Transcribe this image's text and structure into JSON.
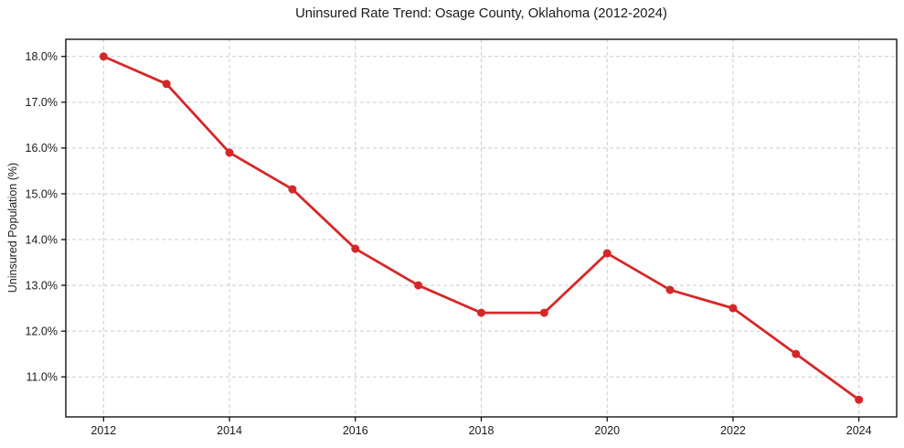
{
  "chart_data": {
    "type": "line",
    "title": "Uninsured Rate Trend: Osage County, Oklahoma (2012-2024)",
    "xlabel": "",
    "ylabel": "Uninsured Population (%)",
    "x": [
      2012,
      2013,
      2014,
      2015,
      2016,
      2017,
      2018,
      2019,
      2020,
      2021,
      2022,
      2023,
      2024
    ],
    "values": [
      18.0,
      17.4,
      15.9,
      15.1,
      13.8,
      13.0,
      12.4,
      12.4,
      13.7,
      12.9,
      12.5,
      11.5,
      10.5
    ],
    "xlim": [
      2011.4,
      2024.6
    ],
    "ylim": [
      10.125,
      18.375
    ],
    "x_ticks": [
      2012,
      2014,
      2016,
      2018,
      2020,
      2022,
      2024
    ],
    "x_tick_labels": [
      "2012",
      "2014",
      "2016",
      "2018",
      "2020",
      "2022",
      "2024"
    ],
    "y_ticks": [
      11,
      12,
      13,
      14,
      15,
      16,
      17,
      18
    ],
    "y_tick_labels": [
      "11.0%",
      "12.0%",
      "13.0%",
      "14.0%",
      "15.0%",
      "16.0%",
      "17.0%",
      "18.0%"
    ],
    "grid": true,
    "legend": "none",
    "line_color": "#d62728",
    "marker": "circle",
    "grid_color": "#cccccc",
    "spine_color": "#000000",
    "text_color": "#1a1a1a",
    "background_color": "#ffffff"
  }
}
